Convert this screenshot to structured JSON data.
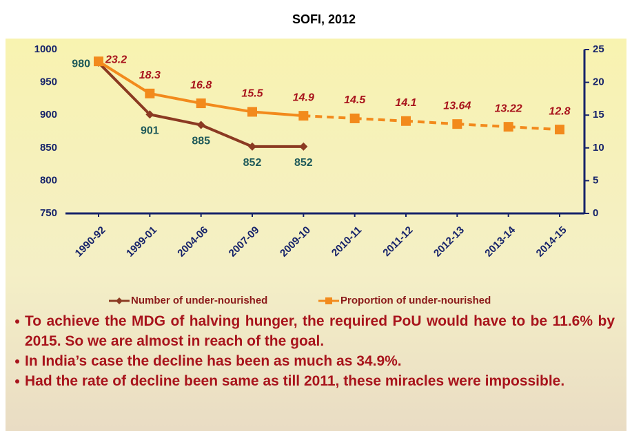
{
  "chart_data": {
    "type": "line",
    "title": "SOFI, 2012",
    "categories": [
      "1990-92",
      "1999-01",
      "2004-06",
      "2007-09",
      "2009-10",
      "2010-11",
      "2011-12",
      "2012-13",
      "2013-14",
      "2014-15"
    ],
    "series": [
      {
        "name": "Number of under-nourished",
        "color": "#8b3a22",
        "axis": "y",
        "marker": "diamond",
        "label_color": "#1f5a5a",
        "values": [
          980,
          901,
          885,
          852,
          852,
          null,
          null,
          null,
          null,
          null
        ]
      },
      {
        "name": "Proportion of under-nourished",
        "color": "#f28a1c",
        "axis": "y2",
        "marker": "square",
        "label_color": "#a8141c",
        "values": [
          23.2,
          18.3,
          16.8,
          15.5,
          14.9,
          14.5,
          14.1,
          13.64,
          13.22,
          12.8
        ],
        "dashed": [
          false,
          false,
          false,
          false,
          false,
          true,
          true,
          true,
          true,
          true
        ]
      }
    ],
    "ylim": [
      750,
      1000
    ],
    "yticks": [
      750,
      800,
      850,
      900,
      950,
      1000
    ],
    "y2lim": [
      0,
      25
    ],
    "y2ticks": [
      0,
      5,
      10,
      15,
      20,
      25
    ],
    "legend": "bottom",
    "grid": false
  },
  "bullets": [
    "To achieve the MDG of halving hunger, the required PoU would have to be 11.6% by  2015. So we are almost in reach of the goal.",
    "In India’s case the decline has been as much as 34.9%.",
    "Had the rate of decline  been same as till 2011, these miracles were impossible."
  ]
}
